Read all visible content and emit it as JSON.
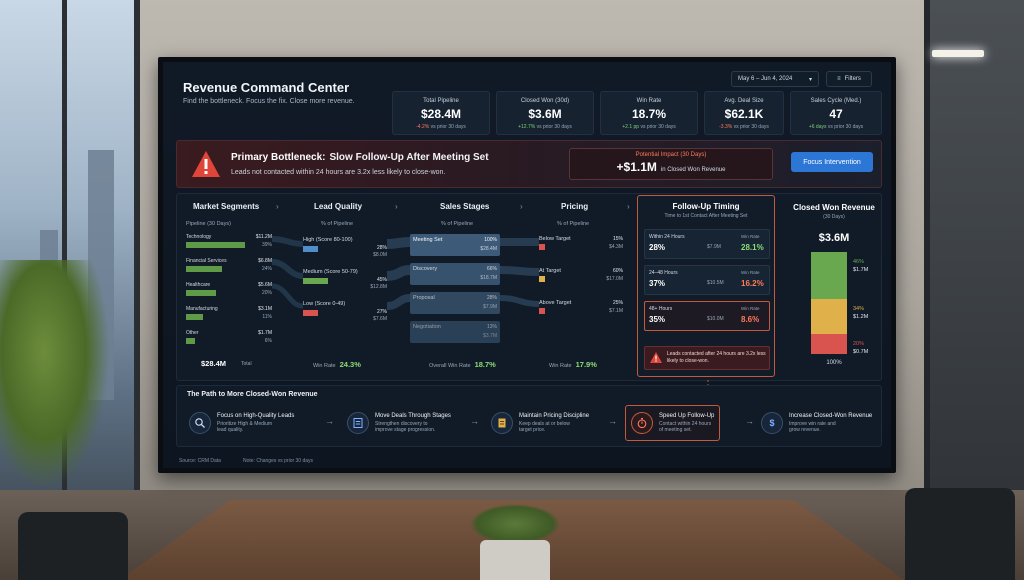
{
  "header": {
    "title": "Revenue Command Center",
    "subtitle": "Find the bottleneck. Focus the fix. Close more revenue.",
    "date_range": "May 6 – Jun 4, 2024",
    "filters_label": "Filters"
  },
  "kpis": [
    {
      "label": "Total Pipeline",
      "value": "$28.4M",
      "change": "-4.2%",
      "compare": "vs prior 30 days",
      "trend": "neg"
    },
    {
      "label": "Closed Won (30d)",
      "value": "$3.6M",
      "change": "+12.7%",
      "compare": "vs prior 30 days",
      "trend": "pos"
    },
    {
      "label": "Win Rate",
      "value": "18.7%",
      "change": "+2.1 pp",
      "compare": "vs prior 30 days",
      "trend": "pos"
    },
    {
      "label": "Avg. Deal Size",
      "value": "$62.1K",
      "change": "-3.3%",
      "compare": "vs prior 30 days",
      "trend": "neg"
    },
    {
      "label": "Sales Cycle (Med.)",
      "value": "47",
      "change": "+6 days",
      "compare": "vs prior 30 days",
      "trend": "pos"
    }
  ],
  "bottleneck": {
    "title": "Primary Bottleneck:",
    "headline": "Slow Follow-Up After Meeting Set",
    "description": "Leads not contacted within 24 hours are 3.2x less likely to close-won.",
    "impact_label": "Potential Impact (30 Days)",
    "impact_value": "+$1.1M",
    "impact_sub": "in Closed Won Revenue",
    "button": "Focus Intervention"
  },
  "segments": {
    "title": "Market Segments",
    "subtitle": "Pipeline (30 Days)",
    "rows": [
      {
        "name": "Technology",
        "value": "$11.2M",
        "pct": "39%",
        "share": 0.39
      },
      {
        "name": "Financial Services",
        "value": "$6.8M",
        "pct": "24%",
        "share": 0.24
      },
      {
        "name": "Healthcare",
        "value": "$5.6M",
        "pct": "20%",
        "share": 0.2
      },
      {
        "name": "Manufacturing",
        "value": "$3.1M",
        "pct": "11%",
        "share": 0.11
      },
      {
        "name": "Other",
        "value": "$1.7M",
        "pct": "6%",
        "share": 0.06
      }
    ],
    "total": "$28.4M",
    "total_label": "Total"
  },
  "quality": {
    "title": "Lead Quality",
    "subtitle": "% of Pipeline",
    "rows": [
      {
        "name": "High (Score 80-100)",
        "pct": "28%",
        "value": "$8.0M",
        "color": "#4f8ec9",
        "share": 0.28
      },
      {
        "name": "Medium (Score 50-79)",
        "pct": "45%",
        "value": "$12.8M",
        "color": "#6aa84f",
        "share": 0.45
      },
      {
        "name": "Low (Score 0-49)",
        "pct": "27%",
        "value": "$7.6M",
        "color": "#d9534f",
        "share": 0.27
      }
    ],
    "win_rate_label": "Win Rate",
    "win_rate": "24.3%"
  },
  "stages": {
    "title": "Sales Stages",
    "subtitle": "% of Pipeline",
    "rows": [
      {
        "name": "Meeting Set",
        "pct": "100%",
        "value": "$28.4M"
      },
      {
        "name": "Discovery",
        "pct": "66%",
        "value": "$18.7M"
      },
      {
        "name": "Proposal",
        "pct": "28%",
        "value": "$7.9M"
      },
      {
        "name": "Negotiation",
        "pct": "13%",
        "value": "$3.7M"
      }
    ],
    "win_rate_label": "Overall Win Rate",
    "win_rate": "18.7%"
  },
  "pricing": {
    "title": "Pricing",
    "subtitle": "% of Pipeline",
    "rows": [
      {
        "name": "Below Target",
        "pct": "15%",
        "value": "$4.3M",
        "color": "#d9534f"
      },
      {
        "name": "At Target",
        "pct": "60%",
        "value": "$17.0M",
        "color": "#e0b04a"
      },
      {
        "name": "Above Target",
        "pct": "25%",
        "value": "$7.1M",
        "color": "#d9534f"
      }
    ],
    "win_rate_label": "Win Rate",
    "win_rate": "17.9%"
  },
  "followup": {
    "title": "Follow-Up Timing",
    "subtitle": "Time to 1st Contact After Meeting Set",
    "rows": [
      {
        "name": "Within 24 Hours",
        "pct": "28%",
        "value": "$7.9M",
        "wr_label": "Win Rate",
        "wr": "28.1%",
        "wr_color": "#8ddc76"
      },
      {
        "name": "24–48 Hours",
        "pct": "37%",
        "value": "$10.5M",
        "wr_label": "Win Rate",
        "wr": "16.2%",
        "wr_color": "#ff7b5c"
      },
      {
        "name": "48+ Hours",
        "pct": "35%",
        "value": "$10.0M",
        "wr_label": "Win Rate",
        "wr": "8.6%",
        "wr_color": "#ff7b5c"
      }
    ],
    "note": "Leads contacted after 24 hours are 3.2x less likely to close-won."
  },
  "closed_won": {
    "title": "Closed Won Revenue",
    "subtitle": "(30 Days)",
    "value": "$3.6M",
    "segments": [
      {
        "pct": "46%",
        "value": "$1.7M",
        "color": "#6aa84f",
        "share": 0.46
      },
      {
        "pct": "34%",
        "value": "$1.2M",
        "color": "#e0b04a",
        "share": 0.34
      },
      {
        "pct": "20%",
        "value": "$0.7M",
        "color": "#d9534f",
        "share": 0.2
      }
    ],
    "total": "100%"
  },
  "path": {
    "title": "The Path to More Closed-Won Revenue",
    "steps": [
      {
        "title": "Focus on High-Quality Leads",
        "desc1": "Prioritize High & Medium",
        "desc2": "lead quality."
      },
      {
        "title": "Move Deals Through Stages",
        "desc1": "Strengthen discovery to",
        "desc2": "improve stage progression."
      },
      {
        "title": "Maintain Pricing Discipline",
        "desc1": "Keep deals at or below",
        "desc2": "target price."
      },
      {
        "title": "Speed Up Follow-Up",
        "desc1": "Contact within 24 hours",
        "desc2": "of meeting set."
      },
      {
        "title": "Increase Closed-Won Revenue",
        "desc1": "Improve win rate and",
        "desc2": "grow revenue."
      }
    ]
  },
  "footer": {
    "source": "Source: CRM Data",
    "note": "Note: Changes vs prior 30 days"
  },
  "colors": {
    "accent": "#2c76d6",
    "alert": "#c45a3d",
    "positive": "#8ddc76",
    "negative": "#ff7b5c"
  }
}
